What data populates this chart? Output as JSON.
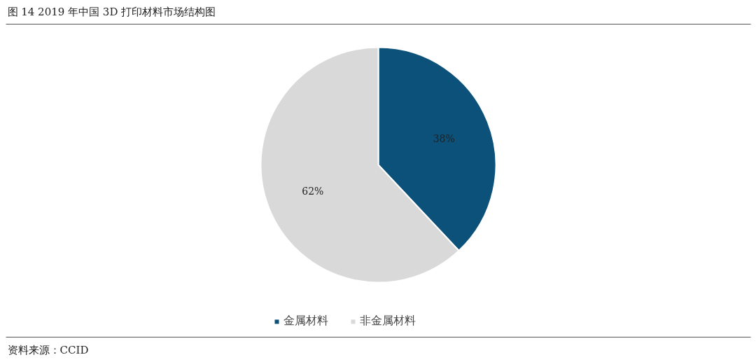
{
  "chart_data": {
    "type": "pie",
    "title": "图 14 2019 年中国 3D 打印材料市场结构图",
    "categories": [
      "金属材料",
      "非金属材料"
    ],
    "values": [
      38,
      62
    ],
    "colors": [
      "#0b5179",
      "#d9d9d9"
    ],
    "value_labels": [
      "38%",
      "62%"
    ],
    "legend": "bottom",
    "annotations": [
      "资料来源：CCID"
    ]
  }
}
